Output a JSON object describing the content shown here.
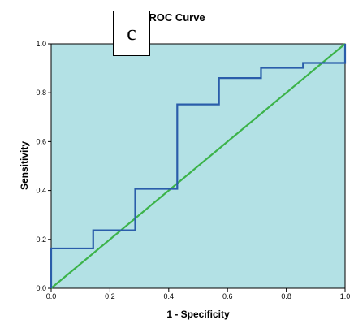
{
  "panel_label": "c",
  "chart_data": {
    "type": "line",
    "title": "ROC Curve",
    "xlabel": "1 - Specificity",
    "ylabel": "Sensitivity",
    "xlim": [
      0,
      1
    ],
    "ylim": [
      0,
      1
    ],
    "xticks": [
      "0.0",
      "0.2",
      "0.4",
      "0.6",
      "0.8",
      "1.0"
    ],
    "yticks": [
      "0.0",
      "0.2",
      "0.4",
      "0.6",
      "0.8",
      "1.0"
    ],
    "grid": false,
    "legend": "none",
    "plot_background": "#b3e1e5",
    "series": [
      {
        "role": "roc-curve",
        "color": "#2a5daa",
        "x": [
          0,
          0,
          0.143,
          0.143,
          0.286,
          0.286,
          0.429,
          0.429,
          0.571,
          0.571,
          0.714,
          0.714,
          0.857,
          0.857,
          1.0,
          1.0
        ],
        "y": [
          0,
          0.163,
          0.163,
          0.237,
          0.237,
          0.407,
          0.407,
          0.752,
          0.752,
          0.86,
          0.86,
          0.902,
          0.902,
          0.922,
          0.922,
          1.0
        ]
      },
      {
        "role": "reference-line",
        "color": "#3cb34a",
        "x": [
          0,
          1
        ],
        "y": [
          0,
          1
        ]
      }
    ]
  }
}
